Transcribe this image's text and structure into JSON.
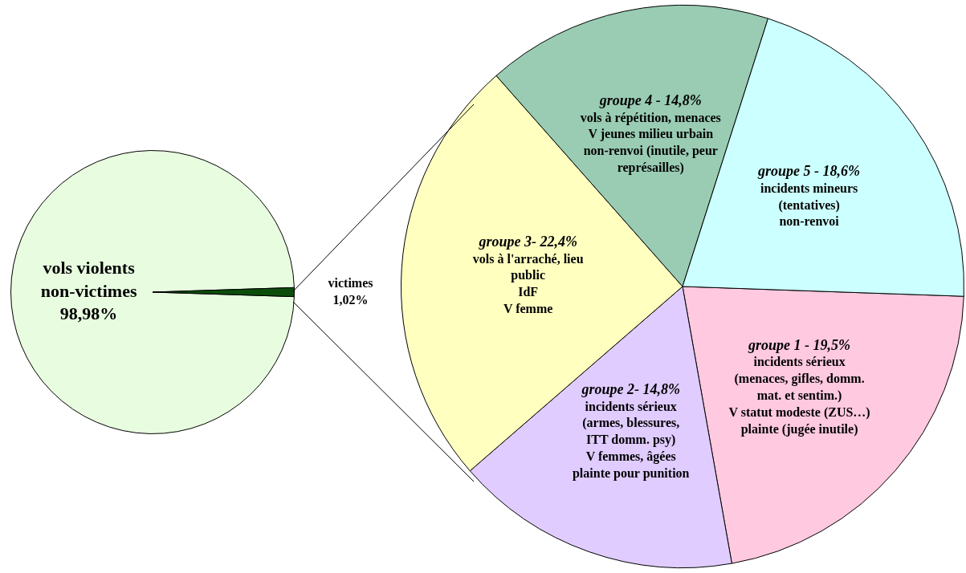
{
  "chart_data": [
    {
      "type": "pie",
      "title": "vols violents",
      "categories": [
        "non-victimes",
        "victimes"
      ],
      "values": [
        98.98,
        1.02
      ],
      "colors": [
        "#e8fde0",
        "#0b4d0b"
      ],
      "value_labels": [
        "98,98%",
        "1,02%"
      ]
    },
    {
      "type": "pie",
      "categories": [
        "groupe 1 -",
        "groupe 2-",
        "groupe 3-",
        "groupe 4 -",
        "groupe 5 -"
      ],
      "values": [
        19.5,
        14.8,
        22.4,
        14.8,
        18.6
      ],
      "value_labels": [
        "19,5%",
        "14,8%",
        "22,4%",
        "14,8%",
        "18,6%"
      ],
      "colors": [
        "#ffc9e0",
        "#e0ccff",
        "#ffffc0",
        "#99ccb3",
        "#ccffff"
      ],
      "annotations": [
        "incidents sérieux\n(menaces, gifles, domm.\nmat. et sentim.)\nV statut modeste (ZUS…)\nplainte (jugée inutile)",
        "incidents sérieux\n(armes, blessures,\nITT domm. psy)\nV femmes, âgées\nplainte pour punition",
        "vols à l'arraché, lieu\npublic\nIdF\nV femme",
        "vols à répétition, menaces\nV jeunes milieu urbain\nnon-renvoi (inutile, peur\nreprésailles)",
        "incidents mineurs\n(tentatives)\nnon-renvoi"
      ]
    }
  ]
}
